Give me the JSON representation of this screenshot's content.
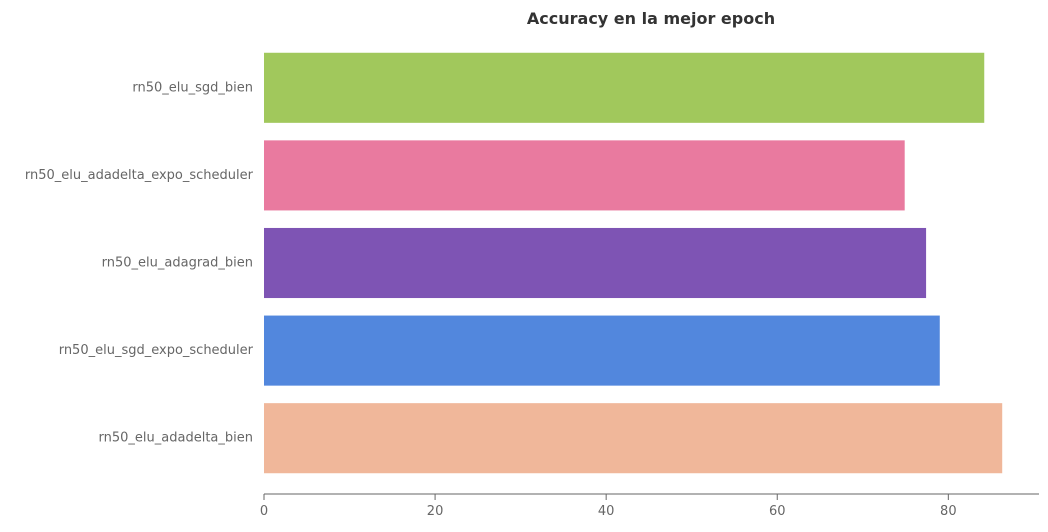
{
  "chart_data": {
    "type": "bar",
    "orientation": "horizontal",
    "title": "Accuracy en la mejor epoch",
    "xlabel": "",
    "ylabel": "",
    "categories": [
      "rn50_elu_sgd_bien",
      "rn50_elu_adadelta_expo_scheduler",
      "rn50_elu_adagrad_bien",
      "rn50_elu_sgd_expo_scheduler",
      "rn50_elu_adadelta_bien"
    ],
    "values": [
      84.2,
      74.9,
      77.4,
      79.0,
      86.3
    ],
    "colors": [
      "#a1c85c",
      "#e97a9f",
      "#7e54b4",
      "#5287dd",
      "#f0b79a"
    ],
    "xlim": [
      0,
      90.6
    ],
    "xticks": [
      0,
      20,
      40,
      60,
      80
    ],
    "grid": false,
    "legend": "none"
  }
}
